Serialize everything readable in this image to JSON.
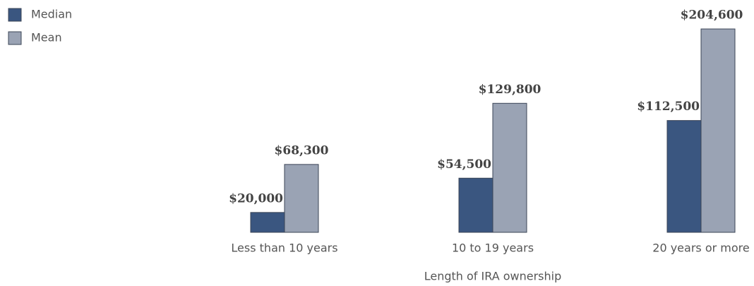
{
  "chart_data": {
    "type": "bar",
    "x_label": "Length of IRA ownership",
    "categories": [
      "Less than 10 years",
      "10 to 19 years",
      "20 years or more"
    ],
    "series": [
      {
        "name": "Median",
        "color": "#3a5680",
        "values": [
          20000,
          54500,
          112500
        ],
        "value_labels": [
          "$20,000",
          "$54,500",
          "$112,500"
        ]
      },
      {
        "name": "Mean",
        "color": "#9aa3b4",
        "values": [
          68300,
          129800,
          204600
        ],
        "value_labels": [
          "$68,300",
          "$129,800",
          "$204,600"
        ]
      }
    ],
    "legend": "upper left"
  }
}
